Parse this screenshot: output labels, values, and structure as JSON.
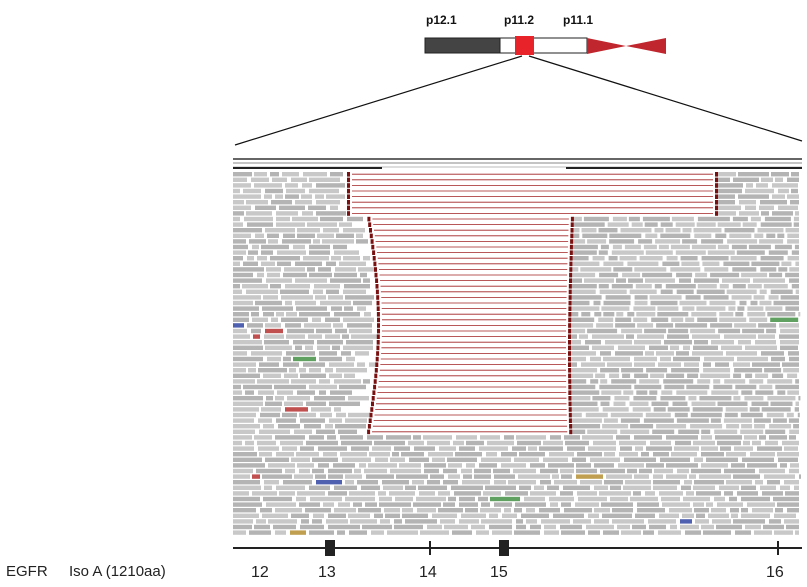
{
  "ideogram": {
    "bands": [
      {
        "label": "p12.1",
        "fill": "#444444"
      },
      {
        "label": "p11.2",
        "fill": "#ffffff",
        "highlight": "#e8232a"
      },
      {
        "label": "p11.1",
        "fill": "#ffffff"
      }
    ],
    "centromere_color": "#c0262d"
  },
  "track": {
    "gene": "EGFR",
    "isoform": "Iso A (1210aa)",
    "exons": [
      "12",
      "13",
      "14",
      "15",
      "16"
    ]
  },
  "colors": {
    "read": "#c8c8c8",
    "read_alt": "#b4b4b4",
    "split_mark": "#7a1010",
    "split_line": "#a02020",
    "axis": "#222222"
  },
  "reads": {
    "description_free": true,
    "split_read_rows": 39
  }
}
